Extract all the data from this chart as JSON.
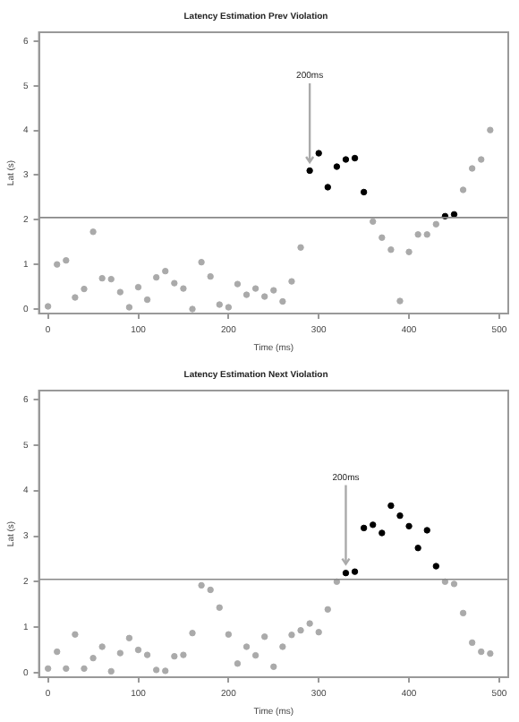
{
  "chart_data": [
    {
      "type": "scatter",
      "title": "Latency Estimation Prev Violation",
      "xlabel": "Time (ms)",
      "ylabel": "Lat (s)",
      "x": [
        0,
        10,
        20,
        30,
        40,
        50,
        60,
        70,
        80,
        90,
        100,
        110,
        120,
        130,
        140,
        150,
        160,
        170,
        180,
        190,
        200,
        210,
        220,
        230,
        240,
        250,
        260,
        270,
        280,
        290,
        300,
        310,
        320,
        330,
        340,
        350,
        360,
        370,
        380,
        390,
        400,
        410,
        420,
        430,
        440,
        450,
        460,
        470,
        480,
        490
      ],
      "series": [
        {
          "color": "#aaaaaa",
          "values": [
            0.06,
            1.0,
            1.09,
            0.26,
            0.45,
            1.73,
            0.69,
            0.67,
            0.38,
            0.04,
            0.49,
            0.21,
            0.71,
            0.85,
            0.58,
            0.46,
            0.0,
            1.05,
            0.73,
            0.1,
            0.04,
            0.56,
            0.32,
            0.46,
            0.28,
            0.42,
            0.17,
            0.62,
            1.38,
            null,
            null,
            null,
            null,
            null,
            null,
            null,
            1.96,
            1.6,
            1.33,
            0.18,
            1.28,
            1.67,
            1.67,
            1.9,
            null,
            null,
            2.67,
            3.15,
            3.35,
            4.01
          ]
        },
        {
          "color": "#000000",
          "values": [
            null,
            null,
            null,
            null,
            null,
            null,
            null,
            null,
            null,
            null,
            null,
            null,
            null,
            null,
            null,
            null,
            null,
            null,
            null,
            null,
            null,
            null,
            null,
            null,
            null,
            null,
            null,
            null,
            null,
            3.1,
            3.49,
            2.73,
            3.19,
            3.35,
            3.38,
            2.62,
            null,
            null,
            null,
            null,
            null,
            null,
            null,
            null,
            2.08,
            2.12,
            null,
            null,
            null,
            null
          ]
        }
      ],
      "xlim": [
        -10,
        510
      ],
      "xticks": [
        0,
        100,
        200,
        300,
        400,
        500
      ],
      "ylim": [
        -0.1,
        6.2
      ],
      "yticks": [
        0,
        1,
        2,
        3,
        4,
        5,
        6
      ],
      "ref_lines": [
        {
          "axis": "y",
          "value": 2.05,
          "color": "#888888"
        }
      ],
      "annotations": [
        {
          "text": "200ms",
          "x": 290,
          "y": 3.25
        }
      ],
      "marker": "circle",
      "grid": false,
      "legend": false
    },
    {
      "type": "scatter",
      "title": "Latency Estimation Next Violation",
      "xlabel": "Time (ms)",
      "ylabel": "Lat (s)",
      "x": [
        0,
        10,
        20,
        30,
        40,
        50,
        60,
        70,
        80,
        90,
        100,
        110,
        120,
        130,
        140,
        150,
        160,
        170,
        180,
        190,
        200,
        210,
        220,
        230,
        240,
        250,
        260,
        270,
        280,
        290,
        300,
        310,
        320,
        330,
        340,
        350,
        360,
        370,
        380,
        390,
        400,
        410,
        420,
        430,
        440,
        450,
        460,
        470,
        480,
        490
      ],
      "series": [
        {
          "color": "#aaaaaa",
          "values": [
            0.09,
            0.46,
            0.09,
            0.84,
            0.09,
            0.32,
            0.57,
            0.03,
            0.43,
            0.76,
            0.5,
            0.39,
            0.06,
            0.04,
            0.36,
            0.39,
            0.87,
            1.92,
            1.82,
            1.43,
            0.84,
            0.2,
            0.57,
            0.38,
            0.79,
            0.13,
            0.57,
            0.83,
            0.93,
            1.08,
            0.89,
            1.39,
            2.0,
            null,
            null,
            null,
            null,
            null,
            null,
            null,
            null,
            null,
            null,
            null,
            2.0,
            1.95,
            1.31,
            0.66,
            0.46,
            0.42
          ]
        },
        {
          "color": "#000000",
          "values": [
            null,
            null,
            null,
            null,
            null,
            null,
            null,
            null,
            null,
            null,
            null,
            null,
            null,
            null,
            null,
            null,
            null,
            null,
            null,
            null,
            null,
            null,
            null,
            null,
            null,
            null,
            null,
            null,
            null,
            null,
            null,
            null,
            null,
            2.19,
            2.22,
            3.18,
            3.25,
            3.07,
            3.67,
            3.45,
            3.22,
            2.74,
            3.13,
            2.34,
            null,
            null,
            null,
            null,
            null,
            null
          ]
        }
      ],
      "xlim": [
        -10,
        510
      ],
      "xticks": [
        0,
        100,
        200,
        300,
        400,
        500
      ],
      "ylim": [
        -0.1,
        6.2
      ],
      "yticks": [
        0,
        1,
        2,
        3,
        4,
        5,
        6
      ],
      "ref_lines": [
        {
          "axis": "y",
          "value": 2.05,
          "color": "#888888"
        }
      ],
      "annotations": [
        {
          "text": "200ms",
          "x": 330,
          "y": 2.35
        }
      ],
      "marker": "circle",
      "grid": false,
      "legend": false
    }
  ]
}
